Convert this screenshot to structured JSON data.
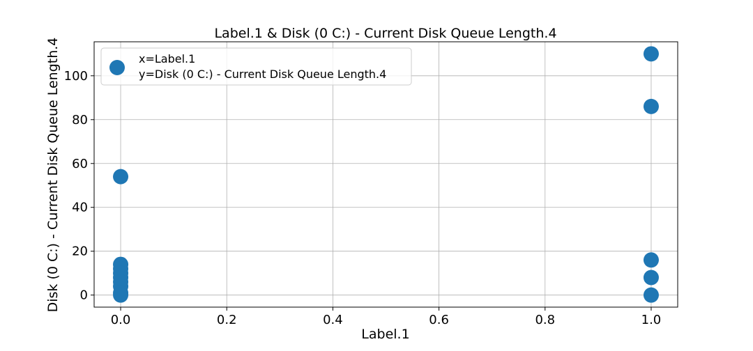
{
  "chart_data": {
    "type": "scatter",
    "title": "Label.1 & Disk (0 C:) - Current Disk Queue Length.4",
    "xlabel": "Label.1",
    "ylabel": "Disk (0 C:) - Current Disk Queue Length.4",
    "xlim": [
      -0.05,
      1.05
    ],
    "ylim": [
      -5.5,
      115.5
    ],
    "xticks": [
      0.0,
      0.2,
      0.4,
      0.6,
      0.8,
      1.0
    ],
    "xtick_labels": [
      "0.0",
      "0.2",
      "0.4",
      "0.6",
      "0.8",
      "1.0"
    ],
    "yticks": [
      0,
      20,
      40,
      60,
      80,
      100
    ],
    "ytick_labels": [
      "0",
      "20",
      "40",
      "60",
      "80",
      "100"
    ],
    "grid": true,
    "legend": {
      "placement": "top-left",
      "line1": "x=Label.1",
      "line2": "y=Disk (0 C:) - Current Disk Queue Length.4"
    },
    "color": "#1f77b4",
    "points": [
      {
        "x": 0,
        "y": 54
      },
      {
        "x": 0,
        "y": 14
      },
      {
        "x": 0,
        "y": 12
      },
      {
        "x": 0,
        "y": 10
      },
      {
        "x": 0,
        "y": 8
      },
      {
        "x": 0,
        "y": 6
      },
      {
        "x": 0,
        "y": 4
      },
      {
        "x": 0,
        "y": 1
      },
      {
        "x": 0,
        "y": 0
      },
      {
        "x": 1,
        "y": 110
      },
      {
        "x": 1,
        "y": 86
      },
      {
        "x": 1,
        "y": 16
      },
      {
        "x": 1,
        "y": 8
      },
      {
        "x": 1,
        "y": 0
      }
    ]
  }
}
